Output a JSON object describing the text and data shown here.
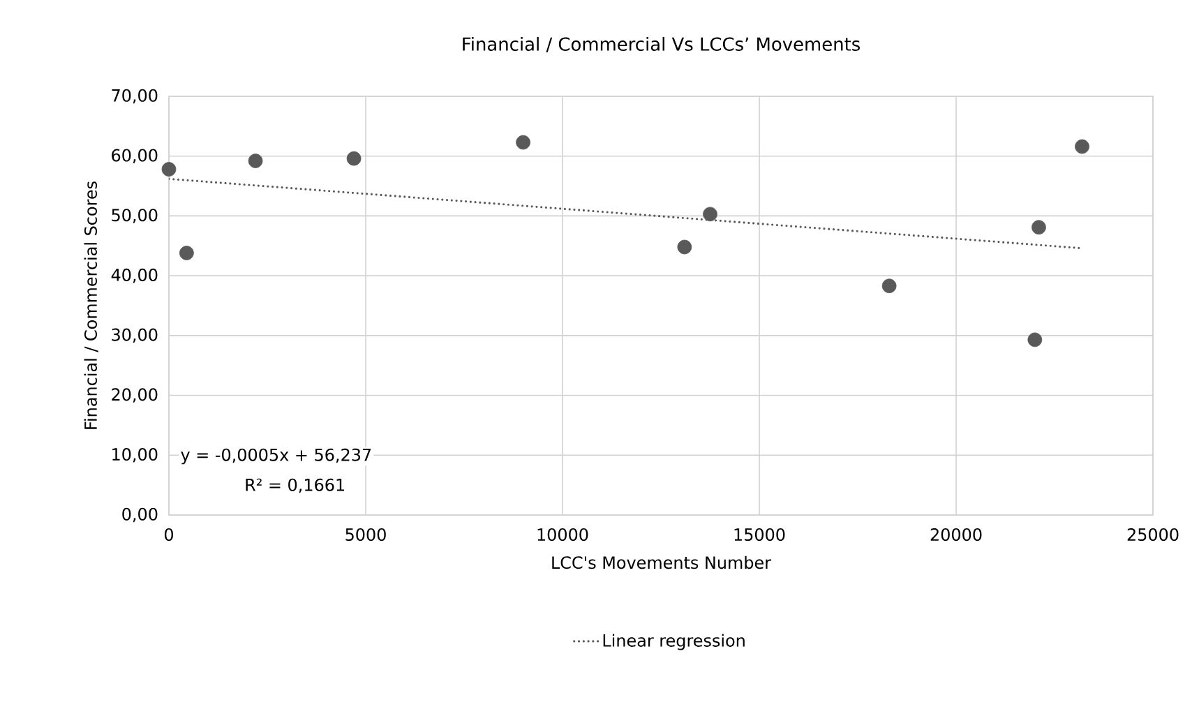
{
  "chart_data": {
    "type": "scatter",
    "title": "Financial / Commercial Vs LCCs’ Movements",
    "xlabel": "LCC's Movements Number",
    "ylabel": "Financial / Commercial Scores",
    "xlim": [
      0,
      25000
    ],
    "xticks": [
      0,
      5000,
      10000,
      15000,
      20000,
      25000
    ],
    "ylim": [
      0,
      70
    ],
    "yticks": [
      {
        "value": 0,
        "label": "0,00"
      },
      {
        "value": 10,
        "label": "10,00"
      },
      {
        "value": 20,
        "label": "20,00"
      },
      {
        "value": 30,
        "label": "30,00"
      },
      {
        "value": 40,
        "label": "40,00"
      },
      {
        "value": 50,
        "label": "50,00"
      },
      {
        "value": 60,
        "label": "60,00"
      },
      {
        "value": 70,
        "label": "70,00"
      }
    ],
    "grid": true,
    "legend": "bottom",
    "series": [
      {
        "marker": "circle",
        "color": "#595959",
        "x": [
          0,
          450,
          2200,
          4700,
          9000,
          13100,
          13750,
          18300,
          22000,
          22100,
          23200
        ],
        "values": [
          57.8,
          43.8,
          59.2,
          59.6,
          62.3,
          44.8,
          50.3,
          38.3,
          29.3,
          48.1,
          61.6
        ]
      },
      {
        "type": "line",
        "name": "Linear regression",
        "marker": "none",
        "line_style": "dotted",
        "color": "#595959",
        "x": [
          0,
          23200
        ],
        "values": [
          56.2,
          44.6
        ]
      }
    ],
    "annotations": [
      "y = -0,0005x + 56,237",
      "R² = 0,1661"
    ]
  }
}
